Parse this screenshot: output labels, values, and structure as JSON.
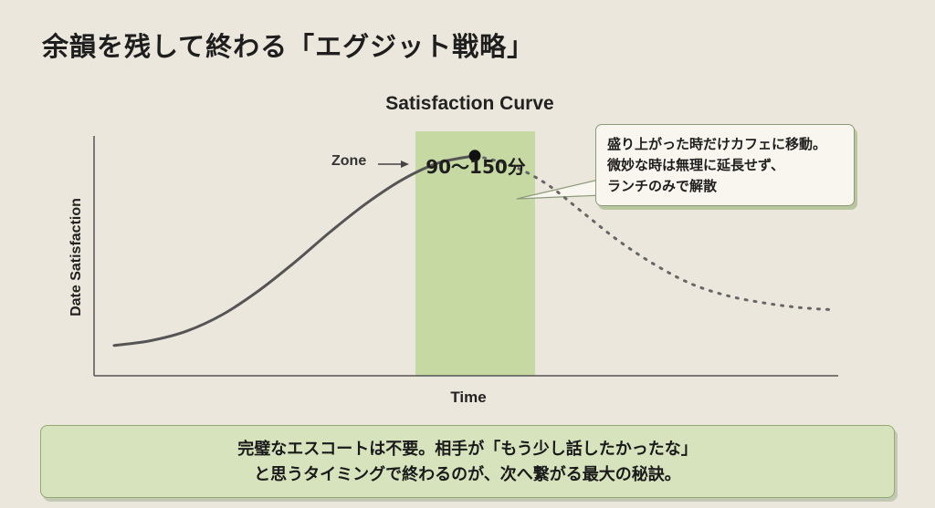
{
  "page": {
    "title": "余韻を残して終わる「エグジット戦略」"
  },
  "chart_data": {
    "type": "line",
    "title": "Satisfaction Curve",
    "xlabel": "Time",
    "ylabel": "Date Satisfaction",
    "grid": false,
    "zone": {
      "label": "Zone",
      "value": "90〜150分",
      "color": "#c7d9a2"
    },
    "peak_callout": [
      "盛り上がった時だけカフェに移動。",
      "微妙な時は無理に延長せず、",
      "ランチのみで解散"
    ],
    "series": [
      {
        "style": "solid",
        "color": "#555555",
        "x": [
          0,
          0.1,
          0.2,
          0.3,
          0.4,
          0.5,
          0.6,
          0.7,
          0.8,
          0.9,
          1.0
        ],
        "y": [
          0.12,
          0.14,
          0.18,
          0.25,
          0.35,
          0.47,
          0.6,
          0.72,
          0.82,
          0.89,
          0.92
        ]
      },
      {
        "style": "dotted",
        "color": "#666666",
        "x": [
          1.0,
          1.1,
          1.2,
          1.3,
          1.4,
          1.5,
          1.6,
          1.7,
          1.8,
          1.9,
          2.0
        ],
        "y": [
          0.92,
          0.88,
          0.8,
          0.68,
          0.56,
          0.46,
          0.38,
          0.33,
          0.3,
          0.28,
          0.27
        ]
      }
    ]
  },
  "bottom_message": {
    "line1": "完璧なエスコートは不要。相手が「もう少し話したかったな」",
    "line2": "と思うタイミングで終わるのが、次へ繋がる最大の秘訣。"
  }
}
